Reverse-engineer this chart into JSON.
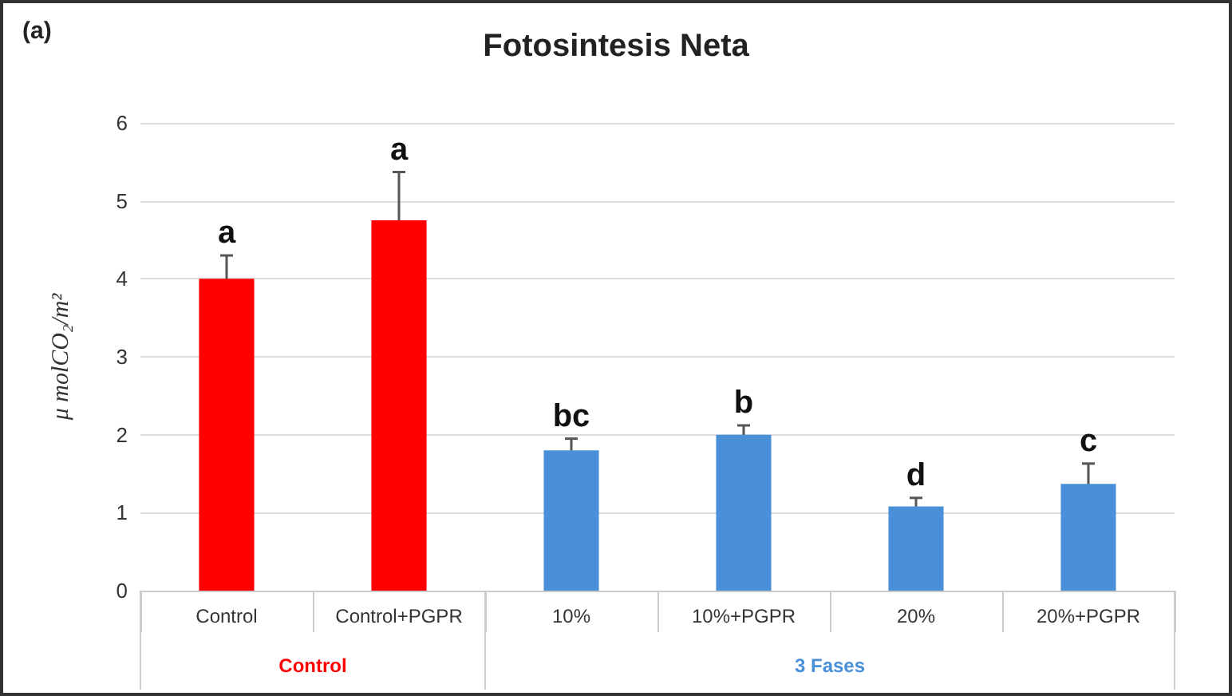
{
  "chart_data": {
    "type": "bar",
    "title": "Fotosintesis Neta",
    "ylabel": "μ molCO₂/m²",
    "categories": [
      "Control",
      "Control+PGPR",
      "10%",
      "10%+PGPR",
      "20%",
      "20%+PGPR"
    ],
    "series": [
      {
        "name": "Control",
        "color": "#ff0000",
        "values": [
          4.0,
          4.75,
          null,
          null,
          null,
          null
        ],
        "errors": [
          0.3,
          0.62,
          null,
          null,
          null,
          null
        ]
      },
      {
        "name": "3 Fases",
        "color": "#4a90d9",
        "values": [
          null,
          null,
          1.8,
          2.0,
          1.08,
          1.37
        ],
        "errors": [
          null,
          null,
          0.15,
          0.12,
          0.11,
          0.26
        ]
      }
    ],
    "ylim": [
      0,
      6
    ],
    "yticks": [
      0,
      1,
      2,
      3,
      4,
      5,
      6
    ],
    "grid": "y",
    "legend": false,
    "annotations": [
      "(a)",
      {
        "text": "a",
        "x": "Control",
        "y": 4.3
      },
      {
        "text": "a",
        "x": "Control+PGPR",
        "y": 5.37
      },
      {
        "text": "bc",
        "x": "10%",
        "y": 1.95
      },
      {
        "text": "b",
        "x": "10%+PGPR",
        "y": 2.12
      },
      {
        "text": "d",
        "x": "20%",
        "y": 1.19
      },
      {
        "text": "c",
        "x": "20%+PGPR",
        "y": 1.63
      }
    ]
  }
}
